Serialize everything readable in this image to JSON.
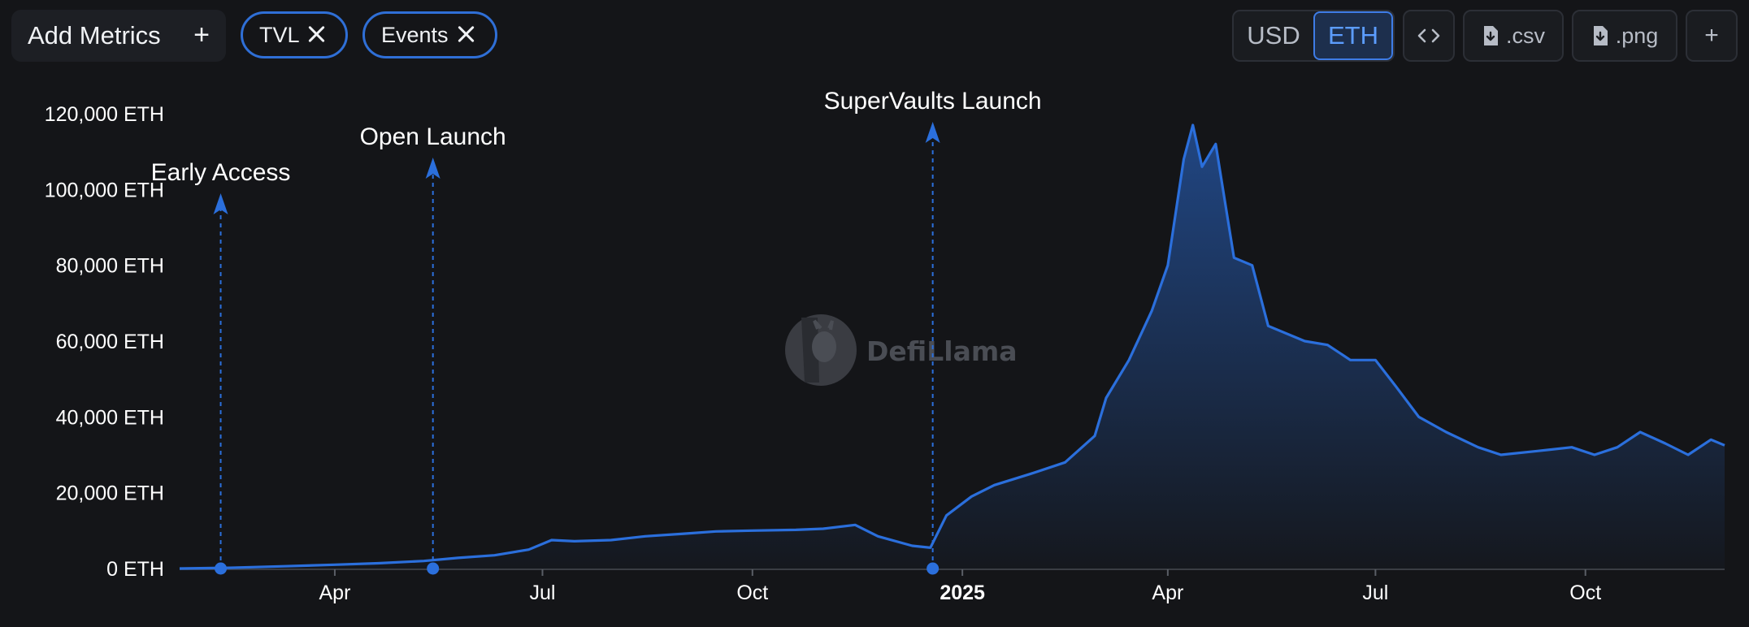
{
  "toolbar": {
    "add_metrics_label": "Add Metrics",
    "add_metrics_icon": "plus-icon",
    "chips": [
      {
        "label": "TVL",
        "icon": "close-icon"
      },
      {
        "label": "Events",
        "icon": "close-icon"
      }
    ],
    "denomination": {
      "options": [
        "USD",
        "ETH"
      ],
      "selected": "ETH"
    },
    "embed_icon": "code-icon",
    "csv_label": ".csv",
    "png_label": ".png",
    "download_icon": "file-download-icon",
    "add_icon": "plus-icon"
  },
  "watermark": {
    "text": "DefiLlama",
    "icon": "llama-logo-icon"
  },
  "colors": {
    "line": "#2b6fdc",
    "background": "#141518",
    "accent": "#3e7ce6"
  },
  "chart_data": {
    "type": "area",
    "unit": "ETH",
    "ylim": [
      0,
      120000
    ],
    "y_ticks": [
      0,
      20000,
      40000,
      60000,
      80000,
      100000,
      120000
    ],
    "y_tick_labels": [
      "0 ETH",
      "20,000 ETH",
      "40,000 ETH",
      "60,000 ETH",
      "80,000 ETH",
      "100,000 ETH",
      "120,000 ETH"
    ],
    "x_range": [
      "2024-01-24",
      "2025-12-01"
    ],
    "x_ticks": [
      {
        "date": "2024-04-01",
        "label": "Apr",
        "bold": false
      },
      {
        "date": "2024-07-01",
        "label": "Jul",
        "bold": false
      },
      {
        "date": "2024-10-01",
        "label": "Oct",
        "bold": false
      },
      {
        "date": "2025-01-01",
        "label": "2025",
        "bold": true
      },
      {
        "date": "2025-04-01",
        "label": "Apr",
        "bold": false
      },
      {
        "date": "2025-07-01",
        "label": "Jul",
        "bold": false
      },
      {
        "date": "2025-10-01",
        "label": "Oct",
        "bold": false
      }
    ],
    "grid": false,
    "series": [
      {
        "name": "TVL",
        "points": [
          [
            "2024-01-24",
            0
          ],
          [
            "2024-02-15",
            200
          ],
          [
            "2024-03-10",
            600
          ],
          [
            "2024-04-01",
            1000
          ],
          [
            "2024-04-20",
            1400
          ],
          [
            "2024-05-10",
            2000
          ],
          [
            "2024-05-25",
            2800
          ],
          [
            "2024-06-10",
            3500
          ],
          [
            "2024-06-25",
            5000
          ],
          [
            "2024-07-05",
            7500
          ],
          [
            "2024-07-15",
            7200
          ],
          [
            "2024-07-31",
            7500
          ],
          [
            "2024-08-15",
            8500
          ],
          [
            "2024-09-01",
            9200
          ],
          [
            "2024-09-15",
            9800
          ],
          [
            "2024-10-01",
            10000
          ],
          [
            "2024-10-20",
            10200
          ],
          [
            "2024-11-01",
            10500
          ],
          [
            "2024-11-15",
            11500
          ],
          [
            "2024-11-25",
            8500
          ],
          [
            "2024-12-10",
            6000
          ],
          [
            "2024-12-18",
            5500
          ],
          [
            "2024-12-25",
            14000
          ],
          [
            "2025-01-05",
            19000
          ],
          [
            "2025-01-15",
            22000
          ],
          [
            "2025-01-31",
            25000
          ],
          [
            "2025-02-15",
            28000
          ],
          [
            "2025-02-28",
            35000
          ],
          [
            "2025-03-05",
            45000
          ],
          [
            "2025-03-15",
            55000
          ],
          [
            "2025-03-25",
            68000
          ],
          [
            "2025-04-01",
            80000
          ],
          [
            "2025-04-08",
            108000
          ],
          [
            "2025-04-12",
            117000
          ],
          [
            "2025-04-16",
            106000
          ],
          [
            "2025-04-22",
            112000
          ],
          [
            "2025-04-30",
            82000
          ],
          [
            "2025-05-08",
            80000
          ],
          [
            "2025-05-15",
            64000
          ],
          [
            "2025-05-31",
            60000
          ],
          [
            "2025-06-10",
            59000
          ],
          [
            "2025-06-20",
            55000
          ],
          [
            "2025-07-01",
            55000
          ],
          [
            "2025-07-10",
            48000
          ],
          [
            "2025-07-20",
            40000
          ],
          [
            "2025-08-01",
            36000
          ],
          [
            "2025-08-15",
            32000
          ],
          [
            "2025-08-25",
            30000
          ],
          [
            "2025-09-10",
            31000
          ],
          [
            "2025-09-25",
            32000
          ],
          [
            "2025-10-05",
            30000
          ],
          [
            "2025-10-15",
            32000
          ],
          [
            "2025-10-25",
            36000
          ],
          [
            "2025-11-05",
            33000
          ],
          [
            "2025-11-15",
            30000
          ],
          [
            "2025-11-25",
            34000
          ],
          [
            "2025-12-01",
            32500
          ]
        ]
      }
    ],
    "events": [
      {
        "label": "Early Access",
        "date": "2024-02-11"
      },
      {
        "label": "Open Launch",
        "date": "2024-05-14"
      },
      {
        "label": "SuperVaults Launch",
        "date": "2024-12-19"
      }
    ]
  }
}
